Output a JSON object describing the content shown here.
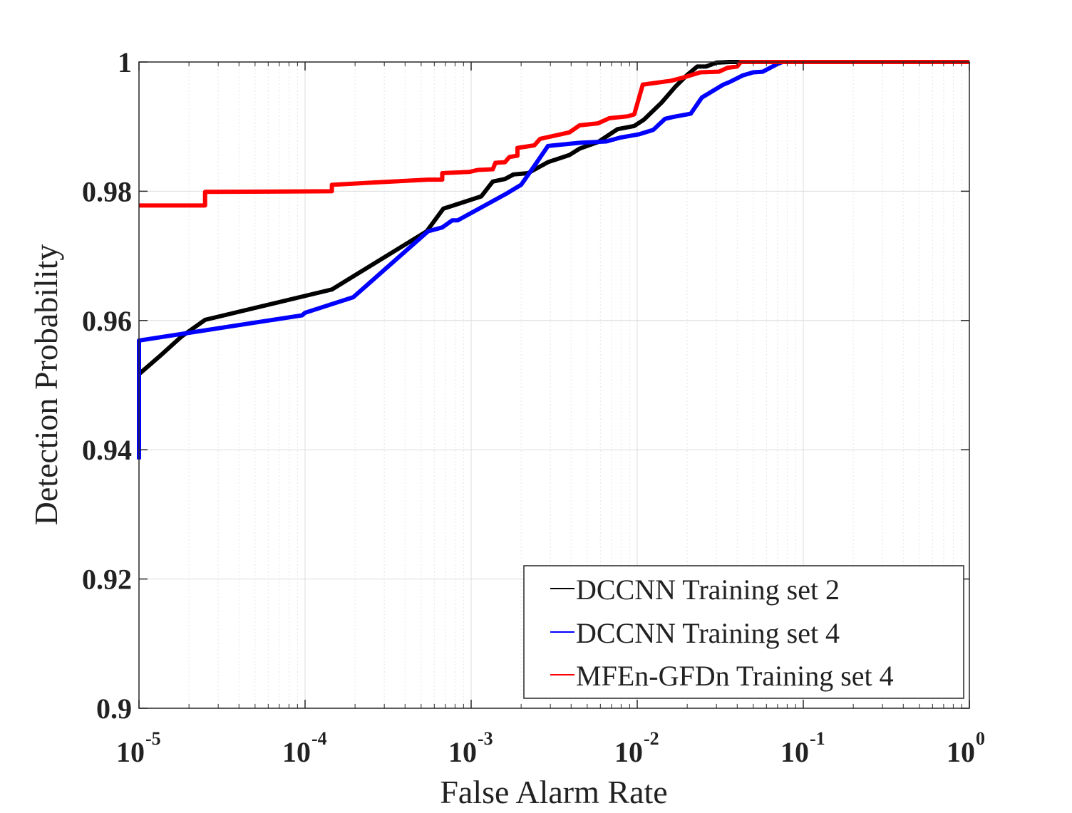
{
  "chart_data": {
    "type": "line",
    "title": "",
    "xlabel": "False Alarm Rate",
    "ylabel": "Detection Probability",
    "xscale": "log",
    "xlim": [
      1e-05,
      1
    ],
    "ylim": [
      0.9,
      1
    ],
    "x_ticks": [
      {
        "base": "10",
        "exp": "-5",
        "value": 1e-05
      },
      {
        "base": "10",
        "exp": "-4",
        "value": 0.0001
      },
      {
        "base": "10",
        "exp": "-3",
        "value": 0.001
      },
      {
        "base": "10",
        "exp": "-2",
        "value": 0.01
      },
      {
        "base": "10",
        "exp": "-1",
        "value": 0.1
      },
      {
        "base": "10",
        "exp": "0",
        "value": 1
      }
    ],
    "y_ticks": [
      {
        "label": "0.9",
        "value": 0.9
      },
      {
        "label": "0.92",
        "value": 0.92
      },
      {
        "label": "0.94",
        "value": 0.94
      },
      {
        "label": "0.96",
        "value": 0.96
      },
      {
        "label": "0.98",
        "value": 0.98
      },
      {
        "label": "1",
        "value": 1
      }
    ],
    "grid": true,
    "legend_position": "bottom-right",
    "series": [
      {
        "name": "DCCNN Training set 2",
        "color": "#000000",
        "points": [
          [
            1e-05,
            0.9517
          ],
          [
            1.35e-05,
            0.9546
          ],
          [
            1.8e-05,
            0.9575
          ],
          [
            2.5e-05,
            0.9601
          ],
          [
            0.000145,
            0.9648
          ],
          [
            0.00054,
            0.9738
          ],
          [
            0.00068,
            0.9773
          ],
          [
            0.00115,
            0.9792
          ],
          [
            0.00135,
            0.9815
          ],
          [
            0.0016,
            0.9819
          ],
          [
            0.0018,
            0.9826
          ],
          [
            0.0022,
            0.9828
          ],
          [
            0.0029,
            0.9845
          ],
          [
            0.0039,
            0.9856
          ],
          [
            0.0045,
            0.9866
          ],
          [
            0.0058,
            0.9876
          ],
          [
            0.0076,
            0.9896
          ],
          [
            0.0096,
            0.9901
          ],
          [
            0.011,
            0.9911
          ],
          [
            0.014,
            0.9937
          ],
          [
            0.017,
            0.9962
          ],
          [
            0.02,
            0.998
          ],
          [
            0.023,
            0.9993
          ],
          [
            0.026,
            0.9993
          ],
          [
            0.03,
            0.9999
          ],
          [
            0.036,
            1.0
          ],
          [
            1.0,
            1.0
          ]
        ]
      },
      {
        "name": "DCCNN Training set 4",
        "color": "#0000ff",
        "points": [
          [
            1e-05,
            0.9385
          ],
          [
            1e-05,
            0.9569
          ],
          [
            9.6e-05,
            0.9608
          ],
          [
            0.0001,
            0.9612
          ],
          [
            0.000195,
            0.9636
          ],
          [
            0.00055,
            0.9738
          ],
          [
            0.00067,
            0.9744
          ],
          [
            0.00077,
            0.9755
          ],
          [
            0.00083,
            0.9755
          ],
          [
            0.00165,
            0.9797
          ],
          [
            0.002,
            0.981
          ],
          [
            0.0024,
            0.9839
          ],
          [
            0.0029,
            0.987
          ],
          [
            0.0045,
            0.9875
          ],
          [
            0.0065,
            0.9877
          ],
          [
            0.0079,
            0.9883
          ],
          [
            0.0102,
            0.9888
          ],
          [
            0.0125,
            0.9895
          ],
          [
            0.0147,
            0.9912
          ],
          [
            0.0165,
            0.9915
          ],
          [
            0.021,
            0.992
          ],
          [
            0.0245,
            0.9945
          ],
          [
            0.033,
            0.9965
          ],
          [
            0.036,
            0.9969
          ],
          [
            0.043,
            0.9979
          ],
          [
            0.05,
            0.9984
          ],
          [
            0.057,
            0.9985
          ],
          [
            0.07,
            0.9997
          ],
          [
            0.075,
            1.0
          ],
          [
            0.98,
            1.0
          ],
          [
            1.0,
            1.0
          ]
        ]
      },
      {
        "name": "MFEn-GFDn Training set 4",
        "color": "#ff0000",
        "points": [
          [
            1e-05,
            0.9778
          ],
          [
            2.5e-05,
            0.9778
          ],
          [
            2.5e-05,
            0.9799
          ],
          [
            0.000145,
            0.98
          ],
          [
            0.000145,
            0.981
          ],
          [
            0.00055,
            0.9818
          ],
          [
            0.00067,
            0.9818
          ],
          [
            0.00067,
            0.9828
          ],
          [
            0.00098,
            0.983
          ],
          [
            0.0011,
            0.9833
          ],
          [
            0.00135,
            0.9834
          ],
          [
            0.0014,
            0.9844
          ],
          [
            0.0016,
            0.9845
          ],
          [
            0.0017,
            0.9853
          ],
          [
            0.0019,
            0.9855
          ],
          [
            0.0019,
            0.9867
          ],
          [
            0.0024,
            0.9871
          ],
          [
            0.0026,
            0.9881
          ],
          [
            0.0039,
            0.9891
          ],
          [
            0.0045,
            0.9902
          ],
          [
            0.0058,
            0.9905
          ],
          [
            0.0068,
            0.9913
          ],
          [
            0.0088,
            0.9916
          ],
          [
            0.0096,
            0.9919
          ],
          [
            0.0108,
            0.9965
          ],
          [
            0.016,
            0.9971
          ],
          [
            0.019,
            0.9976
          ],
          [
            0.024,
            0.9984
          ],
          [
            0.031,
            0.9985
          ],
          [
            0.035,
            0.9991
          ],
          [
            0.04,
            0.9993
          ],
          [
            0.042,
            1.0
          ],
          [
            1.0,
            1.0
          ]
        ]
      }
    ]
  }
}
